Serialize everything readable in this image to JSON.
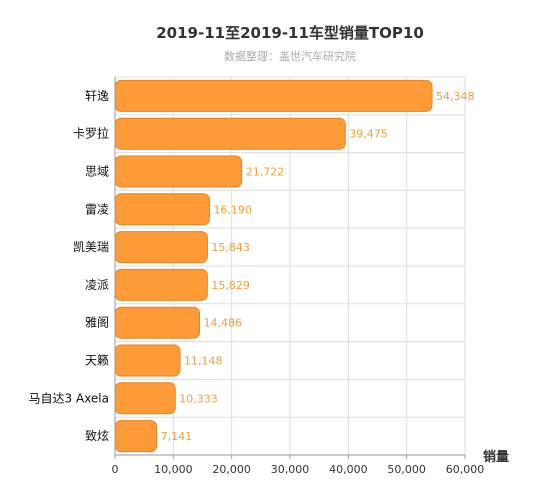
{
  "chart_data": {
    "type": "bar",
    "orientation": "horizontal",
    "title": "2019-11至2019-11车型销量TOP10",
    "subtitle": "数据整理：盖世汽车研究院",
    "xlabel": "销量",
    "ylabel": "",
    "xlim": [
      0,
      60000
    ],
    "x_ticks": [
      0,
      10000,
      20000,
      30000,
      40000,
      50000,
      60000
    ],
    "x_tick_labels": [
      "0",
      "10,000",
      "20,000",
      "30,000",
      "40,000",
      "50,000",
      "60,000"
    ],
    "categories": [
      "轩逸",
      "卡罗拉",
      "思域",
      "雷凌",
      "凯美瑞",
      "凌派",
      "雅阁",
      "天籁",
      "马自达3 Axela",
      "致炫"
    ],
    "values": [
      54348,
      39475,
      21722,
      16190,
      15843,
      15829,
      14486,
      11148,
      10333,
      7141
    ],
    "value_labels": [
      "54,348",
      "39,475",
      "21,722",
      "16,190",
      "15,843",
      "15,829",
      "14,486",
      "11,148",
      "10,333",
      "7,141"
    ],
    "grid": true,
    "legend": "none",
    "bar_color": "#fe9b36",
    "bar_edge_color": "#e08526",
    "value_label_color": "#e9a13b",
    "grid_color": "#dddddd",
    "axis_color": "#999999"
  }
}
